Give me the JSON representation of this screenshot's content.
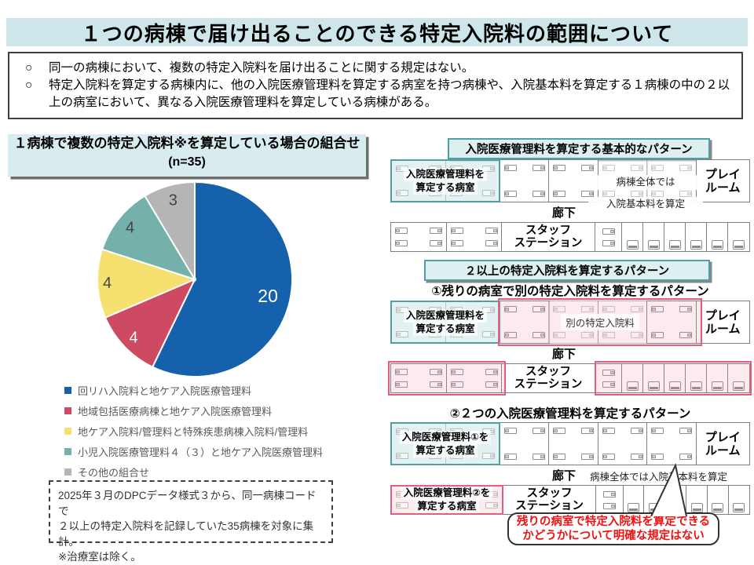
{
  "header": {
    "title": "１つの病棟で届け出ることのできる特定入院料の範囲について"
  },
  "points": {
    "marker": "○",
    "item1": "同一の病棟において、複数の特定入院料を届け出ることに関する規定はない。",
    "item2": "特定入院料を算定する病棟内に、他の入院医療管理料を算定する病室を持つ病棟や、入院基本料を算定する１病棟の中の２以上の病室において、異なる入院医療管理料を算定している病棟がある。"
  },
  "chart_panel": {
    "title": "１病棟で複数の特定入院料※を算定している場合の組合せ",
    "subtitle": "(n=35)",
    "note_line1": "2025年３月のDPCデータ様式３から、同一病棟コードで",
    "note_line2": "２以上の特定入院料を記録していた35病棟を対象に集計。",
    "note_line3": "※治療室は除く。"
  },
  "chart_data": {
    "type": "pie",
    "title": "１病棟で複数の特定入院料※を算定している場合の組合せ (n=35)",
    "n_total": 35,
    "labels": [
      "回リハ入院料と地ケア入院医療管理料",
      "地域包括医療病棟と地ケア入院医療管理料",
      "地ケア入院料/管理料と特殊疾患病棟入院料/管理料",
      "小児入院医療管理料４（３）と地ケア入院医療管理料",
      "その他の組合せ"
    ],
    "values": [
      20,
      4,
      4,
      4,
      3
    ],
    "colors": [
      "#1661AC",
      "#CE4A63",
      "#F6E06F",
      "#74B1AB",
      "#B5B5B5"
    ],
    "value_label_colors": [
      "#ffffff",
      "#ffffff",
      "#444444",
      "#444444",
      "#444444"
    ],
    "start_angle": "12-oclock",
    "direction": "clockwise",
    "legend_position": "below-left"
  },
  "ward_common": {
    "corridor": "廊下",
    "staff_line1": "スタッフ",
    "staff_line2": "ステーション",
    "playroom_line1": "プレイ",
    "playroom_line2": "ルーム"
  },
  "pattern1": {
    "header": "入院医療管理料を算定する基本的なパターン",
    "highlight_room_line1": "入院医療管理料を",
    "highlight_room_line2": "算定する病室",
    "ward_note_line1": "病棟全体では",
    "ward_note_line2": "入院基本料を算定"
  },
  "pattern2": {
    "header": "２以上の特定入院料を算定するパターン",
    "subtitle": "①残りの病室で別の特定入院料を算定するパターン",
    "highlight_room_line1": "入院医療管理料を",
    "highlight_room_line2": "算定する病室",
    "other_fee_label": "別の特定入院料"
  },
  "pattern3": {
    "subtitle": "②２つの入院医療管理料を算定するパターン",
    "room1_line1": "入院医療管理料①を",
    "room1_line2": "算定する病室",
    "room2_line1": "入院医療管理料②を",
    "room2_line2": "算定する病室",
    "corridor_note": "病棟全体では入院基本料を算定",
    "callout_line1": "残りの病室で特定入院料を算定できる",
    "callout_line2": "かどうかについて明確な規定はない"
  },
  "colors": {
    "accent_teal": "#4FA0A4",
    "accent_pink": "#E0607E",
    "title_bg": "#CDE6EA",
    "panel_bg": "#D8EBEE",
    "red_text": "#EE1111"
  }
}
